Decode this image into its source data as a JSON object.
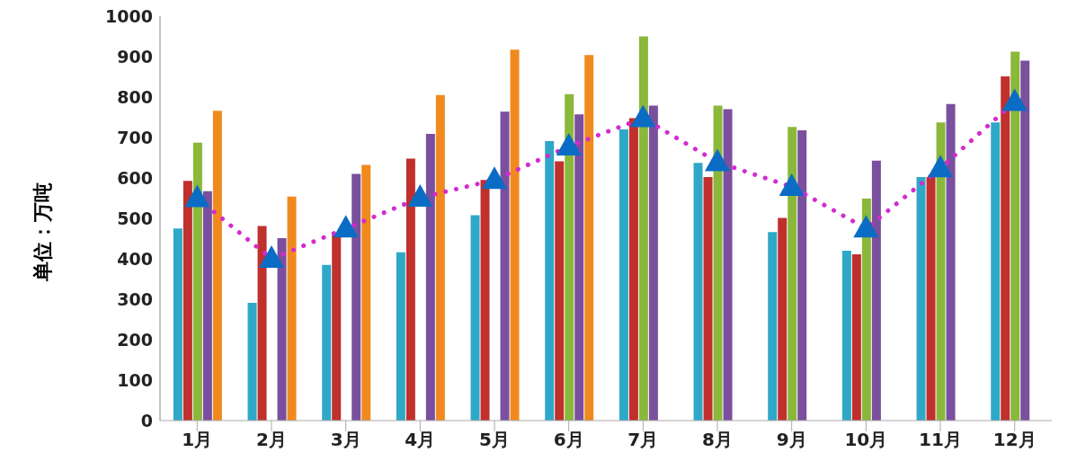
{
  "chart_data": {
    "type": "bar",
    "ylabel": "单位：万吨",
    "categories": [
      "1月",
      "2月",
      "3月",
      "4月",
      "5月",
      "6月",
      "7月",
      "8月",
      "9月",
      "10月",
      "11月",
      "12月"
    ],
    "series": [
      {
        "color": "#2fa8c8",
        "values": [
          475,
          291,
          385,
          416,
          508,
          691,
          720,
          637,
          466,
          420,
          602,
          737
        ]
      },
      {
        "color": "#c0302c",
        "values": [
          593,
          481,
          464,
          648,
          595,
          641,
          748,
          602,
          501,
          411,
          602,
          851
        ]
      },
      {
        "color": "#8ab83a",
        "values": [
          687,
          null,
          null,
          null,
          null,
          807,
          950,
          779,
          726,
          549,
          737,
          912
        ]
      },
      {
        "color": "#7a4f9e",
        "values": [
          567,
          451,
          610,
          709,
          764,
          757,
          779,
          770,
          718,
          643,
          783,
          890
        ]
      },
      {
        "color": "#f08a1e",
        "values": [
          766,
          554,
          632,
          805,
          917,
          904,
          null,
          null,
          null,
          null,
          null,
          null
        ]
      },
      {
        "type": "line",
        "color": "#d42ad0",
        "marker": "triangle",
        "line_style": "dotted",
        "values": [
          550,
          400,
          475,
          551,
          595,
          678,
          748,
          639,
          578,
          475,
          624,
          788
        ]
      }
    ],
    "ylim": [
      0,
      1000
    ],
    "yticks": [
      0,
      100,
      200,
      300,
      400,
      500,
      600,
      700,
      800,
      900,
      1000
    ]
  }
}
